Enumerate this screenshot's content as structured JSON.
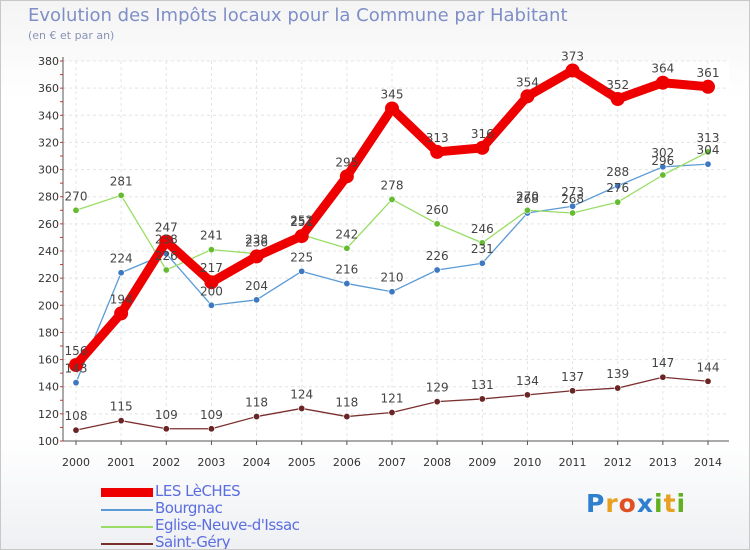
{
  "title": "Evolution des Impôts locaux pour la Commune par Habitant",
  "subtitle": "(en € et par an)",
  "logo": {
    "text": "Proxiti",
    "letters": [
      "P",
      "r",
      "o",
      "x",
      "i",
      "t",
      "i"
    ],
    "letter_colors": [
      "#2f7fcf",
      "#e8a020",
      "#e05020",
      "#2f7fcf",
      "#60b020",
      "#e8a020",
      "#60b020"
    ]
  },
  "chart_data": {
    "type": "line",
    "title": "Evolution des Impôts locaux pour la Commune par Habitant",
    "subtitle": "(en € et par an)",
    "xlabel": "",
    "ylabel": "",
    "x": [
      "2000",
      "2001",
      "2002",
      "2003",
      "2004",
      "2005",
      "2006",
      "2007",
      "2008",
      "2009",
      "2010",
      "2011",
      "2012",
      "2013",
      "2014"
    ],
    "ylim": [
      100,
      380
    ],
    "yticks": [
      100,
      120,
      140,
      160,
      180,
      200,
      220,
      240,
      260,
      280,
      300,
      320,
      340,
      360,
      380
    ],
    "ytick_labels": [
      "100",
      "120",
      "140",
      "160",
      "180",
      "200",
      "220",
      "240",
      "260",
      "280",
      "300",
      "320",
      "340",
      "360",
      "380"
    ],
    "grid": true,
    "legend_position": "bottom-left",
    "series": [
      {
        "name": "LES LèCHES",
        "color": "#ee0000",
        "emphasis": true,
        "values": [
          156,
          194,
          247,
          217,
          236,
          251,
          295,
          345,
          313,
          316,
          354,
          373,
          352,
          364,
          361
        ],
        "labels": [
          "156",
          "194",
          "247",
          "217",
          "236",
          "251",
          "295",
          "345",
          "313",
          "316",
          "354",
          "373",
          "352",
          "364",
          "361"
        ]
      },
      {
        "name": "Bourgnac",
        "color": "#5b9bd5",
        "marker_color": "#3d78c0",
        "emphasis": false,
        "values": [
          143,
          224,
          238,
          200,
          204,
          225,
          216,
          210,
          226,
          231,
          268,
          273,
          288,
          302,
          304
        ],
        "labels": [
          "143",
          "224",
          "238",
          "200",
          "204",
          "225",
          "216",
          "210",
          "226",
          "231",
          "268",
          "273",
          "288",
          "302",
          "304"
        ]
      },
      {
        "name": "Eglise-Neuve-d'Issac",
        "color": "#99dd66",
        "marker_color": "#66bb33",
        "emphasis": false,
        "values": [
          270,
          281,
          226,
          241,
          238,
          252,
          242,
          278,
          260,
          246,
          270,
          268,
          276,
          296,
          313
        ],
        "labels": [
          "270",
          "281",
          "226",
          "241",
          "238",
          "252",
          "242",
          "278",
          "260",
          "246",
          "270",
          "268",
          "276",
          "296",
          "313"
        ]
      },
      {
        "name": "Saint-Géry",
        "color": "#7a2f2f",
        "marker_color": "#6a2424",
        "emphasis": false,
        "values": [
          108,
          115,
          109,
          109,
          118,
          124,
          118,
          121,
          129,
          131,
          134,
          137,
          139,
          147,
          144
        ],
        "labels": [
          "108",
          "115",
          "109",
          "109",
          "118",
          "124",
          "118",
          "121",
          "129",
          "131",
          "134",
          "137",
          "139",
          "147",
          "144"
        ]
      }
    ]
  }
}
